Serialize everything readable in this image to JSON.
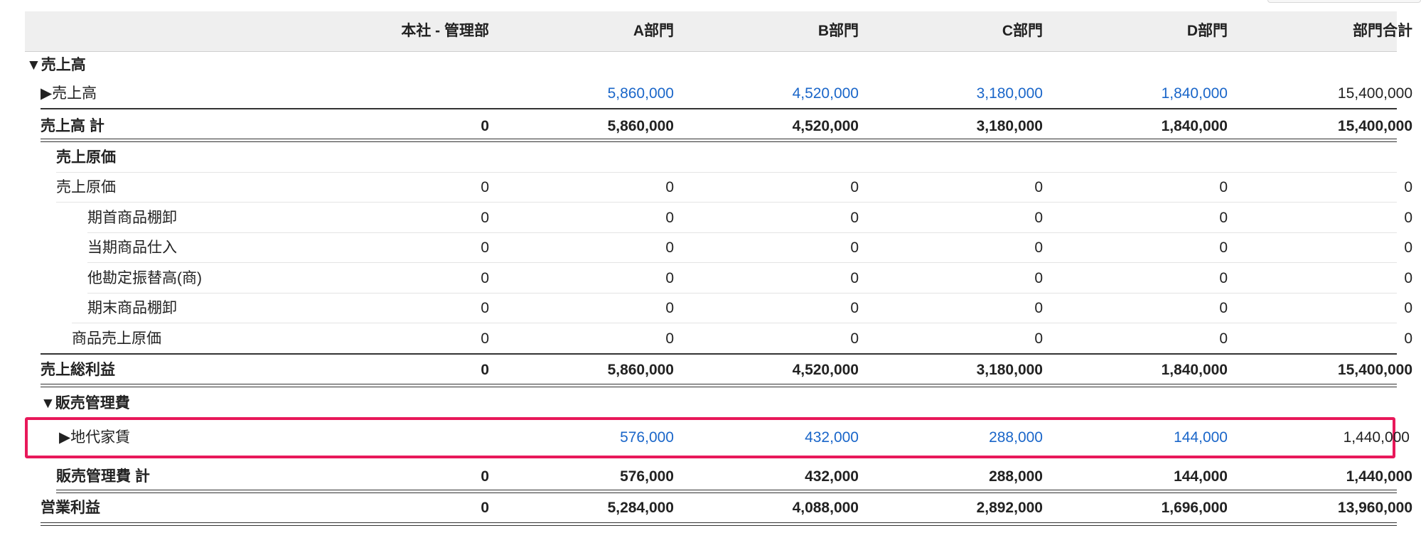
{
  "columns": [
    "本社 - 管理部",
    "A部門",
    "B部門",
    "C部門",
    "D部門",
    "部門合計"
  ],
  "rows": [
    {
      "label": "▼売上高",
      "values": [
        "",
        "",
        "",
        "",
        "",
        ""
      ],
      "style": "bold"
    },
    {
      "label": "▶売上高",
      "values": [
        "",
        "5,860,000",
        "4,520,000",
        "3,180,000",
        "1,840,000",
        "15,400,000"
      ],
      "style": "link"
    },
    {
      "label": "売上高 計",
      "values": [
        "0",
        "5,860,000",
        "4,520,000",
        "3,180,000",
        "1,840,000",
        "15,400,000"
      ],
      "style": "bold"
    },
    {
      "label": "売上原価",
      "values": [
        "",
        "",
        "",
        "",
        "",
        ""
      ],
      "style": "bold"
    },
    {
      "label": "売上原価",
      "values": [
        "0",
        "0",
        "0",
        "0",
        "0",
        "0"
      ],
      "style": "plain"
    },
    {
      "label": "期首商品棚卸",
      "values": [
        "0",
        "0",
        "0",
        "0",
        "0",
        "0"
      ],
      "style": "plain"
    },
    {
      "label": "当期商品仕入",
      "values": [
        "0",
        "0",
        "0",
        "0",
        "0",
        "0"
      ],
      "style": "plain"
    },
    {
      "label": "他勘定振替高(商)",
      "values": [
        "0",
        "0",
        "0",
        "0",
        "0",
        "0"
      ],
      "style": "plain"
    },
    {
      "label": "期末商品棚卸",
      "values": [
        "0",
        "0",
        "0",
        "0",
        "0",
        "0"
      ],
      "style": "plain"
    },
    {
      "label": "商品売上原価",
      "values": [
        "0",
        "0",
        "0",
        "0",
        "0",
        "0"
      ],
      "style": "plain"
    },
    {
      "label": "売上総利益",
      "values": [
        "0",
        "5,860,000",
        "4,520,000",
        "3,180,000",
        "1,840,000",
        "15,400,000"
      ],
      "style": "bold"
    },
    {
      "label": "▼販売管理費",
      "values": [
        "",
        "",
        "",
        "",
        "",
        ""
      ],
      "style": "bold"
    },
    {
      "label": "▶地代家賃",
      "values": [
        "",
        "576,000",
        "432,000",
        "288,000",
        "144,000",
        "1,440,000"
      ],
      "style": "link"
    },
    {
      "label": "販売管理費 計",
      "values": [
        "0",
        "576,000",
        "432,000",
        "288,000",
        "144,000",
        "1,440,000"
      ],
      "style": "bold"
    },
    {
      "label": "営業利益",
      "values": [
        "0",
        "5,284,000",
        "4,088,000",
        "2,892,000",
        "1,696,000",
        "13,960,000"
      ],
      "style": "bold"
    }
  ],
  "colors": {
    "link": "#1a66c9",
    "highlight": "#e8185a"
  }
}
